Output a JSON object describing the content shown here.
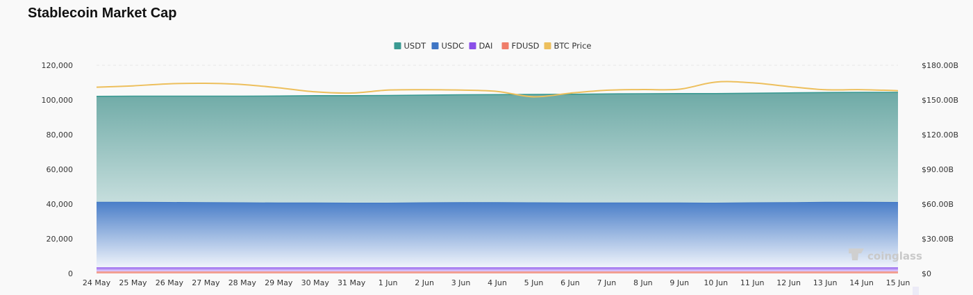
{
  "header": {
    "title": "Stablecoin Market Cap"
  },
  "watermark": "coinglass",
  "chart_data": {
    "type": "area",
    "title": "Stablecoin Market Cap",
    "legend_position": "top-center",
    "grid": true,
    "categories": [
      "24 May",
      "25 May",
      "26 May",
      "27 May",
      "28 May",
      "29 May",
      "30 May",
      "31 May",
      "1 Jun",
      "2 Jun",
      "3 Jun",
      "4 Jun",
      "5 Jun",
      "6 Jun",
      "7 Jun",
      "8 Jun",
      "9 Jun",
      "10 Jun",
      "11 Jun",
      "12 Jun",
      "13 Jun",
      "14 Jun",
      "15 Jun"
    ],
    "left_axis": {
      "ticks": [
        "0",
        "20,000",
        "40,000",
        "60,000",
        "80,000",
        "100,000",
        "120,000"
      ],
      "ylim": [
        0,
        120000
      ]
    },
    "right_axis": {
      "ticks": [
        "$0",
        "$30.00B",
        "$60.00B",
        "$90.00B",
        "$120.00B",
        "$150.00B",
        "$180.00B"
      ],
      "ylim": [
        0,
        180
      ]
    },
    "series": [
      {
        "name": "USDT",
        "type": "stacked-area",
        "axis": "left",
        "color": "#3a9a92",
        "values": [
          60800,
          60900,
          61000,
          61100,
          61200,
          61400,
          61600,
          61700,
          61800,
          61800,
          61900,
          62000,
          62200,
          62400,
          62600,
          62700,
          62800,
          62900,
          62900,
          63000,
          63000,
          63100,
          63200
        ]
      },
      {
        "name": "USDC",
        "type": "stacked-area",
        "axis": "left",
        "color": "#3f76c4",
        "values": [
          37800,
          37800,
          37700,
          37600,
          37500,
          37400,
          37400,
          37300,
          37300,
          37500,
          37600,
          37600,
          37500,
          37400,
          37400,
          37400,
          37400,
          37300,
          37500,
          37600,
          37800,
          37800,
          37700
        ]
      },
      {
        "name": "DAI",
        "type": "stacked-area",
        "axis": "left",
        "color": "#8a4fe8",
        "values": [
          2400,
          2400,
          2400,
          2400,
          2400,
          2400,
          2400,
          2400,
          2400,
          2400,
          2400,
          2400,
          2400,
          2400,
          2400,
          2400,
          2400,
          2400,
          2400,
          2400,
          2400,
          2400,
          2400
        ]
      },
      {
        "name": "FDUSD",
        "type": "stacked-area",
        "axis": "left",
        "color": "#ef7d6a",
        "values": [
          1100,
          1100,
          1100,
          1100,
          1100,
          1100,
          1100,
          1100,
          1100,
          1100,
          1100,
          1100,
          1100,
          1100,
          1100,
          1100,
          1100,
          1100,
          1100,
          1100,
          1100,
          1100,
          1100
        ]
      },
      {
        "name": "BTC Price",
        "type": "line",
        "axis": "right",
        "color": "#edbf5c",
        "values": [
          161.0,
          162.2,
          164.0,
          164.4,
          163.4,
          160.5,
          157.0,
          156.0,
          158.5,
          158.8,
          158.5,
          157.4,
          152.7,
          155.9,
          158.4,
          159.0,
          159.3,
          165.5,
          164.8,
          161.6,
          158.8,
          158.9,
          158.0
        ]
      }
    ]
  }
}
